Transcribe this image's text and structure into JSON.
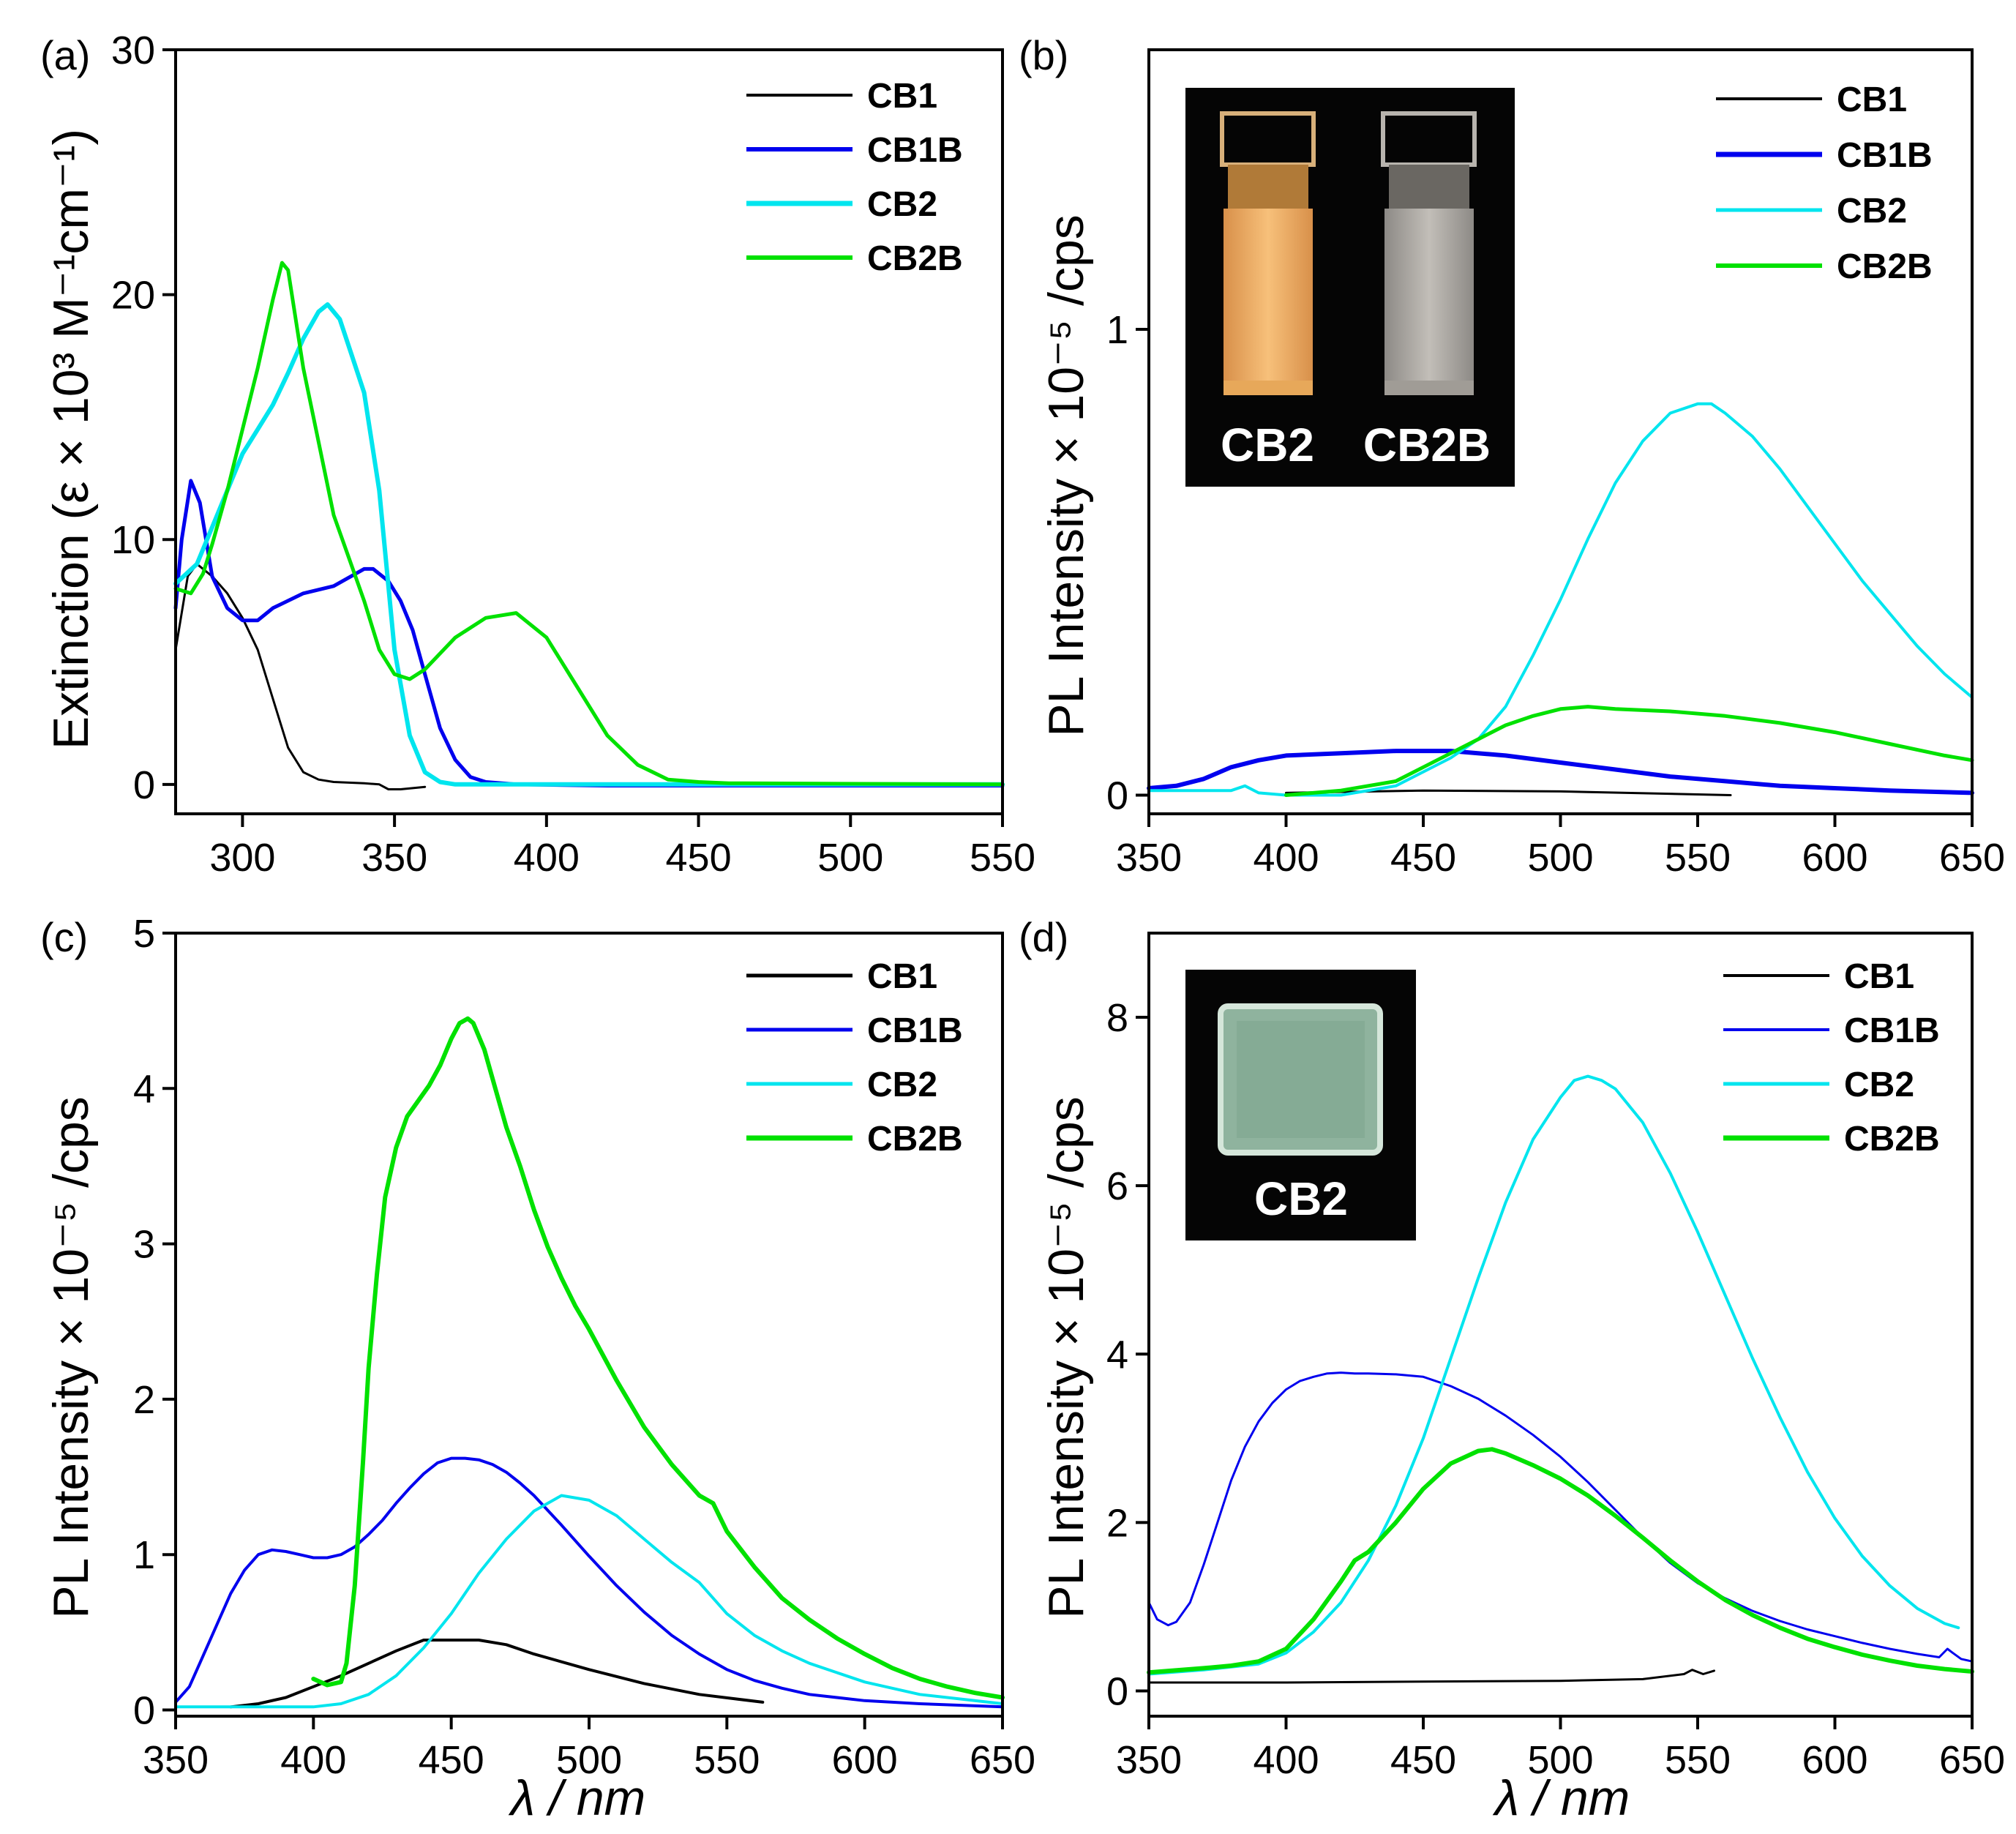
{
  "chart_data": [
    {
      "type": "line",
      "panel_label": "(a)",
      "xlabel": "",
      "ylabel": "Extinction (ε × 10³ M⁻¹cm⁻¹)",
      "xlim": [
        278,
        550
      ],
      "ylim": [
        -1.2,
        30
      ],
      "xticks": [
        300,
        350,
        400,
        450,
        500,
        550
      ],
      "yticks": [
        0,
        10,
        20,
        30
      ],
      "legend_position": "top-right",
      "series": [
        {
          "name": "CB1",
          "color": "#000000",
          "x": [
            278,
            282,
            285,
            290,
            295,
            300,
            305,
            310,
            315,
            320,
            325,
            330,
            340,
            345,
            348,
            352,
            360
          ],
          "y": [
            5.5,
            8.5,
            9.0,
            8.5,
            7.8,
            6.8,
            5.5,
            3.5,
            1.5,
            0.5,
            0.2,
            0.1,
            0.05,
            0.0,
            -0.2,
            -0.2,
            -0.1
          ]
        },
        {
          "name": "CB1B",
          "color": "#0000ee",
          "x": [
            278,
            280,
            283,
            286,
            290,
            295,
            300,
            305,
            310,
            320,
            330,
            340,
            343,
            348,
            352,
            356,
            360,
            365,
            370,
            375,
            380,
            390,
            420,
            550
          ],
          "y": [
            7.2,
            10.0,
            12.4,
            11.5,
            8.5,
            7.2,
            6.7,
            6.7,
            7.2,
            7.8,
            8.1,
            8.8,
            8.8,
            8.3,
            7.5,
            6.3,
            4.5,
            2.3,
            1.0,
            0.3,
            0.1,
            0.0,
            -0.05,
            -0.05
          ]
        },
        {
          "name": "CB2",
          "color": "#00e5ee",
          "x": [
            278,
            285,
            290,
            295,
            300,
            305,
            310,
            315,
            320,
            325,
            328,
            332,
            336,
            340,
            345,
            350,
            355,
            360,
            365,
            370,
            380,
            550
          ],
          "y": [
            8.2,
            9.0,
            10.5,
            12.0,
            13.5,
            14.5,
            15.5,
            16.8,
            18.2,
            19.3,
            19.6,
            19.0,
            17.5,
            16.0,
            12.0,
            5.5,
            2.0,
            0.5,
            0.1,
            0.0,
            0.0,
            0.0
          ]
        },
        {
          "name": "CB2B",
          "color": "#00e100",
          "x": [
            278,
            283,
            287,
            290,
            295,
            300,
            305,
            310,
            313,
            315,
            320,
            330,
            340,
            345,
            350,
            355,
            360,
            370,
            380,
            390,
            400,
            410,
            420,
            430,
            440,
            450,
            460,
            550
          ],
          "y": [
            8.0,
            7.8,
            8.6,
            9.8,
            12.0,
            14.5,
            17.0,
            19.8,
            21.3,
            21.0,
            17.0,
            11.0,
            7.5,
            5.5,
            4.5,
            4.3,
            4.7,
            6.0,
            6.8,
            7.0,
            6.0,
            4.0,
            2.0,
            0.8,
            0.2,
            0.1,
            0.05,
            0.0
          ]
        }
      ]
    },
    {
      "type": "line",
      "panel_label": "(b)",
      "xlabel": "",
      "ylabel": "PL Intensity × 10⁻⁵ /cps",
      "xlim": [
        350,
        650
      ],
      "ylim": [
        -0.04,
        1.6
      ],
      "xticks": [
        350,
        400,
        450,
        500,
        550,
        600,
        650
      ],
      "yticks": [
        0,
        1
      ],
      "legend_position": "top-right",
      "series": [
        {
          "name": "CB1",
          "color": "#000000",
          "x": [
            400,
            450,
            500,
            562
          ],
          "y": [
            0.005,
            0.01,
            0.008,
            0.0
          ]
        },
        {
          "name": "CB1B",
          "color": "#0000ee",
          "x": [
            350,
            360,
            370,
            380,
            390,
            400,
            420,
            440,
            460,
            480,
            500,
            520,
            540,
            560,
            580,
            600,
            620,
            650
          ],
          "y": [
            0.015,
            0.02,
            0.035,
            0.06,
            0.075,
            0.085,
            0.09,
            0.095,
            0.095,
            0.085,
            0.07,
            0.055,
            0.04,
            0.03,
            0.02,
            0.015,
            0.01,
            0.005
          ]
        },
        {
          "name": "CB2",
          "color": "#00e5ee",
          "x": [
            350,
            380,
            385,
            390,
            400,
            420,
            440,
            450,
            460,
            470,
            480,
            490,
            500,
            510,
            520,
            530,
            540,
            550,
            555,
            560,
            570,
            580,
            590,
            600,
            610,
            620,
            630,
            640,
            650
          ],
          "y": [
            0.01,
            0.01,
            0.02,
            0.005,
            0.0,
            0.0,
            0.02,
            0.05,
            0.08,
            0.12,
            0.19,
            0.3,
            0.42,
            0.55,
            0.67,
            0.76,
            0.82,
            0.84,
            0.84,
            0.82,
            0.77,
            0.7,
            0.62,
            0.54,
            0.46,
            0.39,
            0.32,
            0.26,
            0.21
          ]
        },
        {
          "name": "CB2B",
          "color": "#00e100",
          "x": [
            400,
            420,
            440,
            450,
            460,
            470,
            480,
            490,
            500,
            510,
            520,
            540,
            560,
            580,
            600,
            620,
            640,
            650
          ],
          "y": [
            0.0,
            0.01,
            0.03,
            0.06,
            0.09,
            0.12,
            0.15,
            0.17,
            0.185,
            0.19,
            0.185,
            0.18,
            0.17,
            0.155,
            0.135,
            0.11,
            0.085,
            0.075
          ]
        }
      ]
    },
    {
      "type": "line",
      "panel_label": "(c)",
      "xlabel": "λ / nm",
      "ylabel": "PL Intensity × 10⁻⁵ /cps",
      "xlim": [
        350,
        650
      ],
      "ylim": [
        -0.04,
        5
      ],
      "xticks": [
        350,
        400,
        450,
        500,
        550,
        600,
        650
      ],
      "yticks": [
        0,
        1,
        2,
        3,
        4,
        5
      ],
      "legend_position": "top-right",
      "series": [
        {
          "name": "CB1",
          "color": "#000000",
          "x": [
            370,
            380,
            390,
            400,
            410,
            420,
            430,
            440,
            450,
            460,
            470,
            480,
            500,
            520,
            540,
            563
          ],
          "y": [
            0.02,
            0.04,
            0.08,
            0.15,
            0.22,
            0.3,
            0.38,
            0.45,
            0.45,
            0.45,
            0.42,
            0.36,
            0.26,
            0.17,
            0.1,
            0.05
          ]
        },
        {
          "name": "CB1B",
          "color": "#0000ee",
          "x": [
            350,
            355,
            360,
            365,
            370,
            375,
            380,
            385,
            390,
            395,
            400,
            405,
            410,
            415,
            420,
            425,
            430,
            435,
            440,
            445,
            450,
            455,
            460,
            465,
            470,
            475,
            480,
            490,
            500,
            510,
            520,
            530,
            540,
            550,
            560,
            570,
            580,
            600,
            620,
            650
          ],
          "y": [
            0.05,
            0.15,
            0.35,
            0.55,
            0.75,
            0.9,
            1.0,
            1.03,
            1.02,
            1.0,
            0.98,
            0.98,
            1.0,
            1.05,
            1.13,
            1.22,
            1.33,
            1.43,
            1.52,
            1.59,
            1.62,
            1.62,
            1.61,
            1.58,
            1.53,
            1.46,
            1.38,
            1.19,
            0.99,
            0.8,
            0.63,
            0.48,
            0.36,
            0.26,
            0.19,
            0.14,
            0.1,
            0.06,
            0.04,
            0.02
          ]
        },
        {
          "name": "CB2",
          "color": "#00e5ee",
          "x": [
            350,
            400,
            410,
            420,
            430,
            440,
            450,
            460,
            470,
            480,
            490,
            500,
            510,
            520,
            530,
            540,
            550,
            560,
            570,
            580,
            600,
            620,
            650
          ],
          "y": [
            0.02,
            0.02,
            0.04,
            0.1,
            0.22,
            0.4,
            0.62,
            0.88,
            1.1,
            1.28,
            1.38,
            1.35,
            1.25,
            1.1,
            0.95,
            0.82,
            0.62,
            0.48,
            0.38,
            0.3,
            0.18,
            0.1,
            0.04
          ]
        },
        {
          "name": "CB2B",
          "color": "#00e100",
          "x": [
            400,
            405,
            410,
            412,
            415,
            418,
            420,
            423,
            426,
            430,
            434,
            438,
            442,
            446,
            450,
            453,
            456,
            458,
            462,
            466,
            470,
            475,
            480,
            485,
            490,
            495,
            500,
            510,
            520,
            530,
            540,
            545,
            550,
            560,
            570,
            580,
            590,
            600,
            610,
            620,
            630,
            640,
            650
          ],
          "y": [
            0.2,
            0.16,
            0.18,
            0.3,
            0.8,
            1.6,
            2.2,
            2.8,
            3.3,
            3.62,
            3.82,
            3.92,
            4.02,
            4.15,
            4.32,
            4.42,
            4.45,
            4.42,
            4.25,
            4.0,
            3.75,
            3.5,
            3.22,
            2.98,
            2.78,
            2.6,
            2.45,
            2.12,
            1.82,
            1.58,
            1.38,
            1.33,
            1.15,
            0.92,
            0.72,
            0.58,
            0.46,
            0.36,
            0.27,
            0.2,
            0.15,
            0.11,
            0.08
          ]
        }
      ]
    },
    {
      "type": "line",
      "panel_label": "(d)",
      "xlabel": "λ / nm",
      "ylabel": "PL Intensity × 10⁻⁵ /cps",
      "xlim": [
        350,
        650
      ],
      "ylim": [
        -0.3,
        9
      ],
      "xticks": [
        350,
        400,
        450,
        500,
        550,
        600,
        650
      ],
      "yticks": [
        0,
        2,
        4,
        6,
        8
      ],
      "legend_position": "top-right",
      "series": [
        {
          "name": "CB1",
          "color": "#000000",
          "x": [
            350,
            400,
            450,
            500,
            530,
            545,
            548,
            552,
            556
          ],
          "y": [
            0.1,
            0.1,
            0.11,
            0.12,
            0.14,
            0.2,
            0.25,
            0.2,
            0.24
          ]
        },
        {
          "name": "CB1B",
          "color": "#0000ee",
          "x": [
            350,
            353,
            357,
            360,
            365,
            370,
            375,
            380,
            385,
            390,
            395,
            400,
            405,
            410,
            415,
            420,
            425,
            430,
            440,
            450,
            460,
            470,
            480,
            490,
            500,
            510,
            520,
            530,
            540,
            550,
            560,
            570,
            580,
            590,
            600,
            610,
            620,
            630,
            638,
            641,
            643,
            646,
            650
          ],
          "y": [
            1.05,
            0.85,
            0.78,
            0.82,
            1.05,
            1.5,
            2.0,
            2.5,
            2.9,
            3.2,
            3.42,
            3.58,
            3.68,
            3.73,
            3.77,
            3.78,
            3.77,
            3.77,
            3.76,
            3.73,
            3.62,
            3.47,
            3.27,
            3.04,
            2.78,
            2.48,
            2.15,
            1.82,
            1.52,
            1.28,
            1.1,
            0.95,
            0.83,
            0.73,
            0.65,
            0.57,
            0.5,
            0.44,
            0.4,
            0.5,
            0.45,
            0.38,
            0.35
          ]
        },
        {
          "name": "CB2",
          "color": "#00e5ee",
          "x": [
            350,
            370,
            390,
            400,
            410,
            420,
            430,
            440,
            450,
            460,
            470,
            480,
            490,
            500,
            505,
            510,
            515,
            520,
            530,
            540,
            550,
            560,
            570,
            580,
            590,
            600,
            610,
            620,
            630,
            640,
            645
          ],
          "y": [
            0.2,
            0.25,
            0.32,
            0.45,
            0.7,
            1.05,
            1.55,
            2.2,
            3.0,
            3.95,
            4.9,
            5.8,
            6.55,
            7.05,
            7.25,
            7.3,
            7.25,
            7.15,
            6.75,
            6.15,
            5.45,
            4.7,
            3.95,
            3.25,
            2.6,
            2.05,
            1.6,
            1.25,
            0.98,
            0.8,
            0.75
          ]
        },
        {
          "name": "CB2B",
          "color": "#00e100",
          "x": [
            350,
            370,
            380,
            390,
            400,
            410,
            420,
            425,
            430,
            440,
            450,
            460,
            470,
            475,
            480,
            490,
            500,
            510,
            520,
            530,
            540,
            550,
            560,
            570,
            580,
            590,
            600,
            610,
            620,
            630,
            640,
            650
          ],
          "y": [
            0.22,
            0.27,
            0.3,
            0.35,
            0.5,
            0.85,
            1.3,
            1.55,
            1.65,
            2.0,
            2.4,
            2.7,
            2.85,
            2.87,
            2.82,
            2.68,
            2.52,
            2.32,
            2.08,
            1.82,
            1.55,
            1.3,
            1.08,
            0.9,
            0.75,
            0.62,
            0.52,
            0.43,
            0.36,
            0.3,
            0.26,
            0.23
          ]
        }
      ]
    }
  ],
  "insets": {
    "b": {
      "labels": [
        "CB2",
        "CB2B"
      ],
      "cuvette_colors": [
        "#f2b061",
        "#b0aca6"
      ]
    },
    "d": {
      "labels": [
        "CB2"
      ],
      "film_color": "#8fb39e"
    }
  }
}
